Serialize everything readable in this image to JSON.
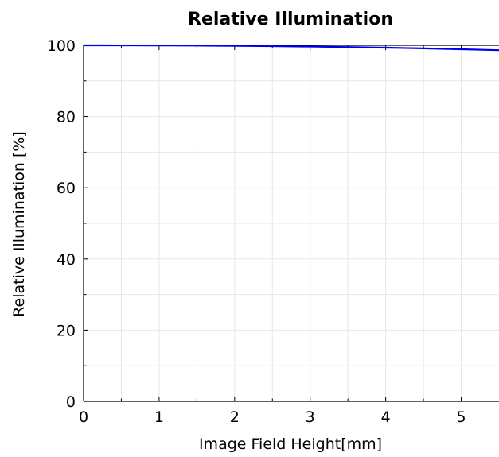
{
  "chart_data": {
    "type": "line",
    "title": "Relative Illumination",
    "xlabel": "Image Field Height[mm]",
    "ylabel": "Relative Illumination [%]",
    "xlim": [
      0,
      5.5
    ],
    "ylim": [
      0,
      100
    ],
    "x_ticks": [
      0,
      1,
      2,
      3,
      4,
      5
    ],
    "y_ticks": [
      0,
      20,
      40,
      60,
      80,
      100
    ],
    "x_minor_ticks": [
      0.5,
      1.5,
      2.5,
      3.5,
      4.5
    ],
    "y_minor_ticks": [
      10,
      30,
      50,
      70,
      90
    ],
    "grid": true,
    "series": [
      {
        "color": "#0000ee",
        "x": [
          0,
          0.5,
          1,
          1.5,
          2,
          2.5,
          3,
          3.5,
          4,
          4.5,
          5,
          5.5
        ],
        "y": [
          100,
          99.99,
          99.97,
          99.93,
          99.86,
          99.77,
          99.65,
          99.5,
          99.33,
          99.13,
          98.89,
          98.62
        ]
      }
    ]
  }
}
